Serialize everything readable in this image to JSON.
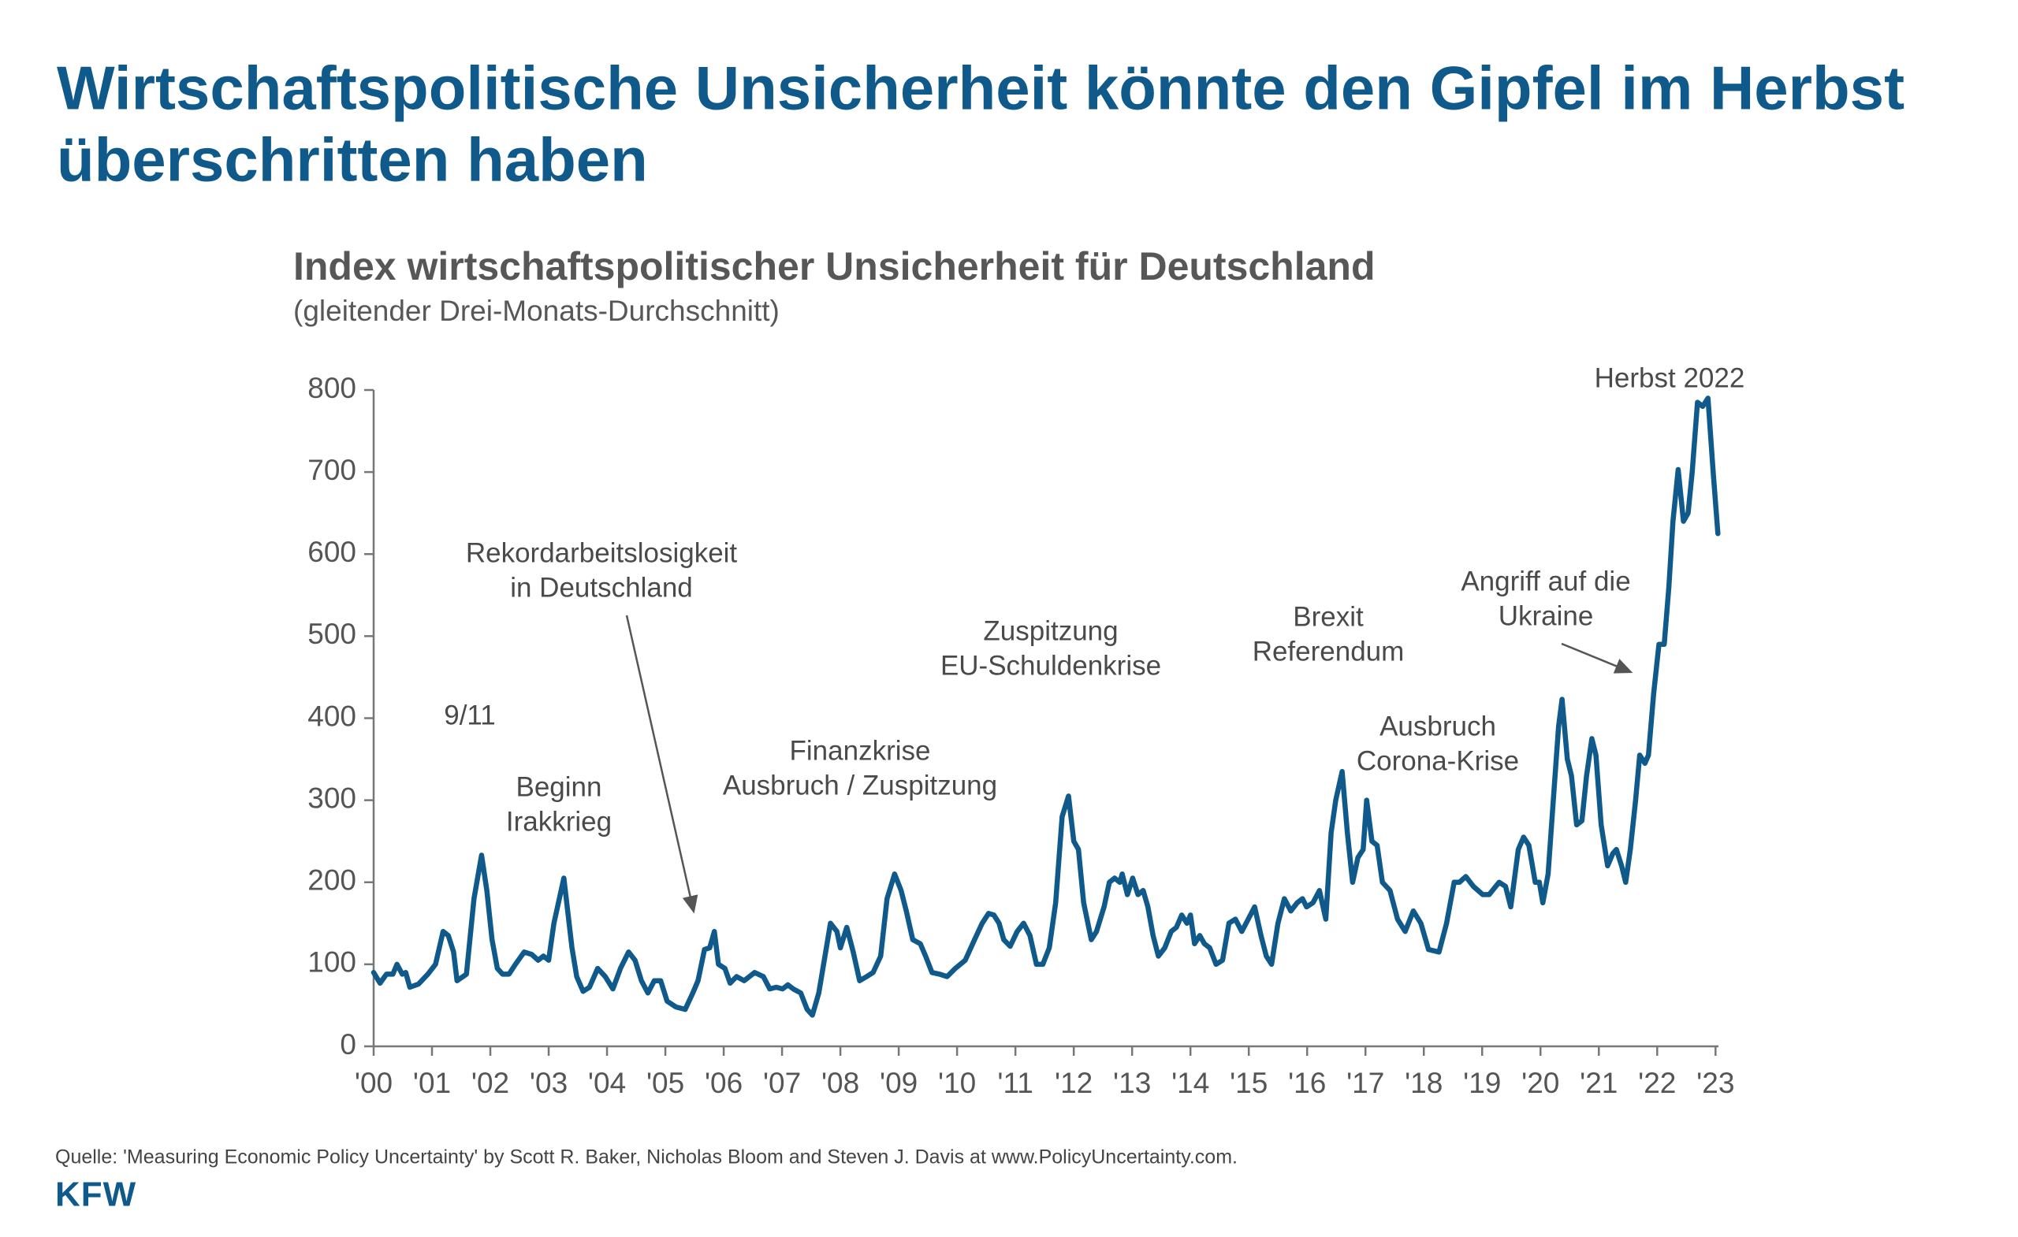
{
  "header": {
    "title": [
      "Wirtschaftspolitische Unsicherheit könnte den Gipfel im Herbst",
      "überschritten haben"
    ]
  },
  "chart_data": {
    "type": "line",
    "title": "Index wirtschaftspolitischer Unsicherheit für Deutschland",
    "subtitle": "(gleitender Drei-Monats-Durchschnitt)",
    "color": "#0f5a8a",
    "xlim": [
      2000,
      2023.05
    ],
    "ylim": [
      0,
      800
    ],
    "yticks": [
      0,
      100,
      200,
      300,
      400,
      500,
      600,
      700,
      800
    ],
    "xticks": [
      {
        "value": 2000,
        "label": "'00"
      },
      {
        "value": 2001,
        "label": "'01"
      },
      {
        "value": 2002,
        "label": "'02"
      },
      {
        "value": 2003,
        "label": "'03"
      },
      {
        "value": 2004,
        "label": "'04"
      },
      {
        "value": 2005,
        "label": "'05"
      },
      {
        "value": 2006,
        "label": "'06"
      },
      {
        "value": 2007,
        "label": "'07"
      },
      {
        "value": 2008,
        "label": "'08"
      },
      {
        "value": 2009,
        "label": "'09"
      },
      {
        "value": 2010,
        "label": "'10"
      },
      {
        "value": 2011,
        "label": "'11"
      },
      {
        "value": 2012,
        "label": "'12"
      },
      {
        "value": 2013,
        "label": "'13"
      },
      {
        "value": 2014,
        "label": "'14"
      },
      {
        "value": 2015,
        "label": "'15"
      },
      {
        "value": 2016,
        "label": "'16"
      },
      {
        "value": 2017,
        "label": "'17"
      },
      {
        "value": 2018,
        "label": "'18"
      },
      {
        "value": 2019,
        "label": "'19"
      },
      {
        "value": 2020,
        "label": "'20"
      },
      {
        "value": 2021,
        "label": "'21"
      },
      {
        "value": 2022,
        "label": "'22"
      },
      {
        "value": 2023,
        "label": "'23"
      }
    ],
    "x": [
      2000.0,
      2000.11,
      2000.22,
      2000.33,
      2000.4,
      2000.49,
      2000.55,
      2000.62,
      2000.77,
      2000.93,
      2001.06,
      2001.19,
      2001.28,
      2001.37,
      2001.43,
      2001.59,
      2001.72,
      2001.85,
      2001.94,
      2002.03,
      2002.12,
      2002.21,
      2002.32,
      2002.43,
      2002.58,
      2002.71,
      2002.82,
      2002.91,
      2003.0,
      2003.09,
      2003.26,
      2003.4,
      2003.48,
      2003.59,
      2003.7,
      2003.84,
      2003.97,
      2004.1,
      2004.23,
      2004.37,
      2004.48,
      2004.59,
      2004.7,
      2004.81,
      2004.92,
      2005.03,
      2005.18,
      2005.34,
      2005.47,
      2005.56,
      2005.67,
      2005.76,
      2005.84,
      2005.91,
      2006.02,
      2006.11,
      2006.22,
      2006.35,
      2006.53,
      2006.68,
      2006.79,
      2006.9,
      2007.01,
      2007.1,
      2007.19,
      2007.32,
      2007.43,
      2007.52,
      2007.63,
      2007.76,
      2007.83,
      2007.94,
      2008.0,
      2008.11,
      2008.22,
      2008.33,
      2008.45,
      2008.56,
      2008.69,
      2008.8,
      2008.93,
      2009.04,
      2009.13,
      2009.24,
      2009.37,
      2009.46,
      2009.57,
      2009.7,
      2009.83,
      2009.97,
      2010.14,
      2010.3,
      2010.43,
      2010.54,
      2010.63,
      2010.72,
      2010.8,
      2010.91,
      2011.03,
      2011.14,
      2011.25,
      2011.36,
      2011.47,
      2011.58,
      2011.69,
      2011.8,
      2011.91,
      2012.0,
      2012.08,
      2012.17,
      2012.3,
      2012.39,
      2012.52,
      2012.61,
      2012.7,
      2012.79,
      2012.83,
      2012.92,
      2013.01,
      2013.1,
      2013.19,
      2013.27,
      2013.36,
      2013.45,
      2013.56,
      2013.67,
      2013.76,
      2013.85,
      2013.94,
      2014.0,
      2014.07,
      2014.16,
      2014.24,
      2014.33,
      2014.44,
      2014.55,
      2014.66,
      2014.77,
      2014.88,
      2014.99,
      2015.1,
      2015.21,
      2015.3,
      2015.39,
      2015.5,
      2015.61,
      2015.72,
      2015.83,
      2015.92,
      2015.99,
      2016.1,
      2016.21,
      2016.32,
      2016.41,
      2016.49,
      2016.6,
      2016.69,
      2016.78,
      2016.87,
      2016.96,
      2017.02,
      2017.11,
      2017.2,
      2017.29,
      2017.42,
      2017.55,
      2017.68,
      2017.82,
      2017.95,
      2018.08,
      2018.26,
      2018.39,
      2018.52,
      2018.61,
      2018.72,
      2018.85,
      2019.01,
      2019.12,
      2019.29,
      2019.4,
      2019.49,
      2019.62,
      2019.71,
      2019.8,
      2019.91,
      2019.98,
      2020.04,
      2020.13,
      2020.22,
      2020.31,
      2020.37,
      2020.46,
      2020.53,
      2020.62,
      2020.71,
      2020.79,
      2020.88,
      2020.95,
      2021.04,
      2021.15,
      2021.24,
      2021.3,
      2021.39,
      2021.46,
      2021.54,
      2021.63,
      2021.7,
      2021.79,
      2021.85,
      2021.94,
      2022.03,
      2022.12,
      2022.2,
      2022.27,
      2022.36,
      2022.45,
      2022.53,
      2022.6,
      2022.69,
      2022.78,
      2022.87,
      2022.96,
      2023.04
    ],
    "values": [
      90,
      77,
      88,
      88,
      100,
      88,
      90,
      72,
      76,
      88,
      100,
      140,
      135,
      115,
      80,
      88,
      180,
      233,
      190,
      130,
      95,
      88,
      88,
      100,
      115,
      112,
      105,
      110,
      105,
      150,
      205,
      120,
      85,
      67,
      72,
      95,
      85,
      70,
      95,
      115,
      105,
      80,
      65,
      80,
      80,
      55,
      48,
      45,
      65,
      80,
      118,
      120,
      140,
      100,
      95,
      77,
      85,
      80,
      90,
      85,
      70,
      72,
      70,
      75,
      70,
      65,
      45,
      38,
      65,
      120,
      150,
      140,
      120,
      145,
      115,
      80,
      85,
      90,
      110,
      180,
      210,
      190,
      165,
      130,
      125,
      110,
      90,
      88,
      85,
      95,
      105,
      130,
      150,
      162,
      160,
      150,
      130,
      122,
      140,
      150,
      135,
      100,
      100,
      120,
      175,
      280,
      305,
      250,
      240,
      175,
      130,
      140,
      170,
      200,
      205,
      200,
      210,
      185,
      205,
      185,
      190,
      170,
      135,
      110,
      120,
      140,
      145,
      160,
      150,
      160,
      125,
      135,
      125,
      120,
      100,
      105,
      150,
      155,
      140,
      155,
      170,
      135,
      110,
      100,
      150,
      180,
      165,
      175,
      180,
      170,
      175,
      190,
      155,
      260,
      300,
      335,
      260,
      200,
      230,
      240,
      300,
      250,
      245,
      200,
      190,
      155,
      140,
      165,
      150,
      118,
      115,
      150,
      200,
      200,
      207,
      195,
      185,
      185,
      200,
      195,
      170,
      240,
      255,
      245,
      200,
      200,
      175,
      210,
      300,
      390,
      423,
      350,
      330,
      270,
      275,
      330,
      375,
      355,
      270,
      220,
      235,
      240,
      220,
      200,
      240,
      300,
      355,
      345,
      355,
      430,
      490,
      490,
      560,
      640,
      703,
      640,
      650,
      700,
      785,
      780,
      790,
      700,
      625
    ],
    "annotations": [
      [
        "9/11"
      ],
      [
        "Beginn",
        "Irakkrieg"
      ],
      [
        "Rekordarbeitslosigkeit",
        "in Deutschland"
      ],
      [
        "Finanzkrise",
        "Ausbruch / Zuspitzung"
      ],
      [
        "Zuspitzung",
        "EU-Schuldenkrise"
      ],
      [
        "Brexit",
        "Referendum"
      ],
      [
        "Ausbruch",
        "Corona-Krise"
      ],
      [
        "Angriff auf die",
        "Ukraine"
      ],
      [
        "Herbst 2022"
      ]
    ]
  },
  "footer": {
    "source": "Quelle: 'Measuring Economic Policy Uncertainty' by Scott R. Baker, Nicholas Bloom and Steven J. Davis at www.PolicyUncertainty.com.",
    "logo": "KFW"
  }
}
